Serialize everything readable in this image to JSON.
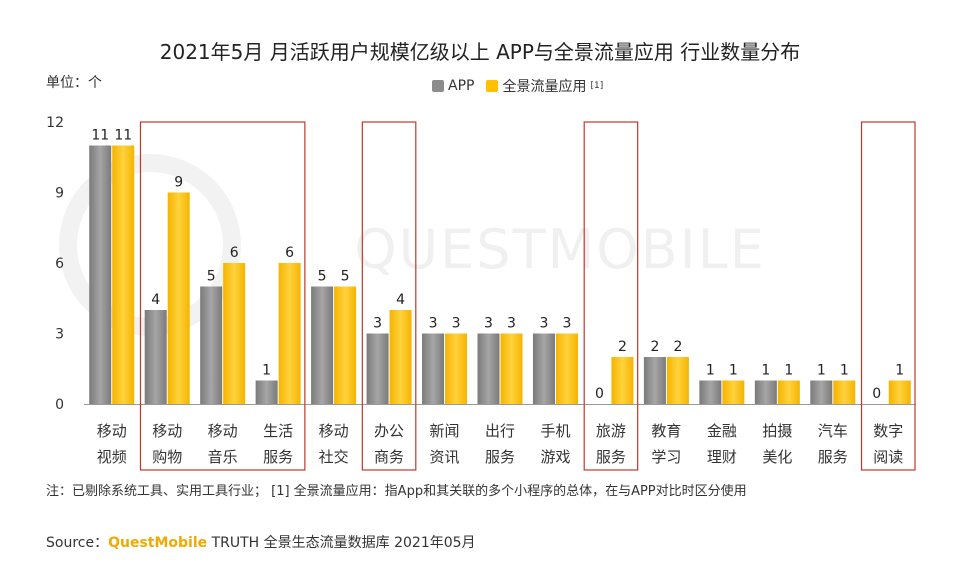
{
  "title": "2021年5月 月活跃用户规模亿级以上 APP与全景流量应用 行业数量分布",
  "unit_label": "单位：个",
  "legend": {
    "app": "APP",
    "pan": "全景流量应用",
    "pan_sup": "[1]"
  },
  "watermark": "QUESTMOBILE",
  "colors": {
    "app": "#8c8c8c",
    "pan": "#ffc000",
    "highlight": "#c0392b",
    "axis": "#999999"
  },
  "chart_data": {
    "type": "bar",
    "title": "2021年5月 月活跃用户规模亿级以上 APP与全景流量应用 行业数量分布",
    "ylabel": "单位：个",
    "xlabel": "",
    "ylim": [
      0,
      12
    ],
    "yticks": [
      0,
      3,
      6,
      9,
      12
    ],
    "categories": [
      [
        "移动",
        "视频"
      ],
      [
        "移动",
        "购物"
      ],
      [
        "移动",
        "音乐"
      ],
      [
        "生活",
        "服务"
      ],
      [
        "移动",
        "社交"
      ],
      [
        "办公",
        "商务"
      ],
      [
        "新闻",
        "资讯"
      ],
      [
        "出行",
        "服务"
      ],
      [
        "手机",
        "游戏"
      ],
      [
        "旅游",
        "服务"
      ],
      [
        "教育",
        "学习"
      ],
      [
        "金融",
        "理财"
      ],
      [
        "拍摄",
        "美化"
      ],
      [
        "汽车",
        "服务"
      ],
      [
        "数字",
        "阅读"
      ]
    ],
    "series": [
      {
        "name": "APP",
        "values": [
          11,
          4,
          5,
          1,
          5,
          3,
          3,
          3,
          3,
          0,
          2,
          1,
          1,
          1,
          0
        ]
      },
      {
        "name": "全景流量应用",
        "values": [
          11,
          9,
          6,
          6,
          5,
          4,
          3,
          3,
          3,
          2,
          2,
          1,
          1,
          1,
          1
        ]
      }
    ],
    "highlight_groups": [
      [
        1,
        3
      ],
      [
        5,
        5
      ],
      [
        9,
        9
      ],
      [
        14,
        14
      ]
    ],
    "legend_position": "top-center"
  },
  "note": "注：已剔除系统工具、实用工具行业；  [1] 全景流量应用：指App和其关联的多个小程序的总体，在与APP对比时区分使用",
  "source": {
    "prefix": "Source：",
    "brand": "QuestMobile",
    "rest": " TRUTH 全景生态流量数据库 2021年05月"
  }
}
